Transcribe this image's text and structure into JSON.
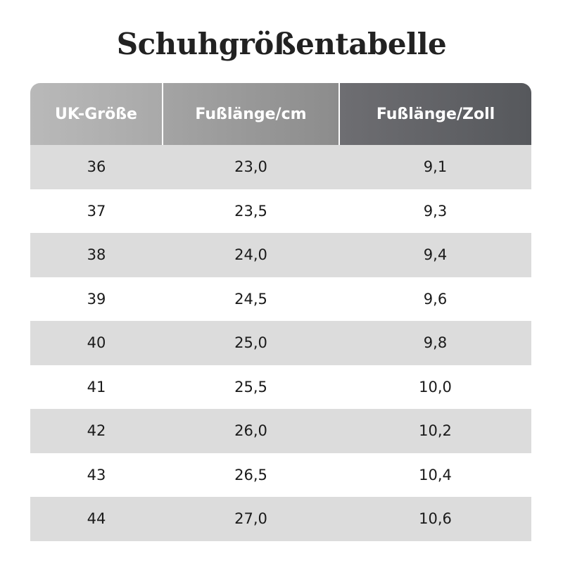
{
  "title": "Schuhgrößentabelle",
  "table": {
    "headers": [
      "UK-Größe",
      "Fußlänge/cm",
      "Fußlänge/Zoll"
    ],
    "rows": [
      [
        "36",
        "23,0",
        "9,1"
      ],
      [
        "37",
        "23,5",
        "9,3"
      ],
      [
        "38",
        "24,0",
        "9,4"
      ],
      [
        "39",
        "24,5",
        "9,6"
      ],
      [
        "40",
        "25,0",
        "9,8"
      ],
      [
        "41",
        "25,5",
        "10,0"
      ],
      [
        "42",
        "26,0",
        "10,2"
      ],
      [
        "43",
        "26,5",
        "10,4"
      ],
      [
        "44",
        "27,0",
        "10,6"
      ]
    ]
  },
  "colors": {
    "header_light": "#b9b9b9",
    "header_mid": "#9a9a9a",
    "header_dark": "#5e6064",
    "row_stripe": "#dcdcdc",
    "row_plain": "#ffffff",
    "title_text": "#222222"
  }
}
